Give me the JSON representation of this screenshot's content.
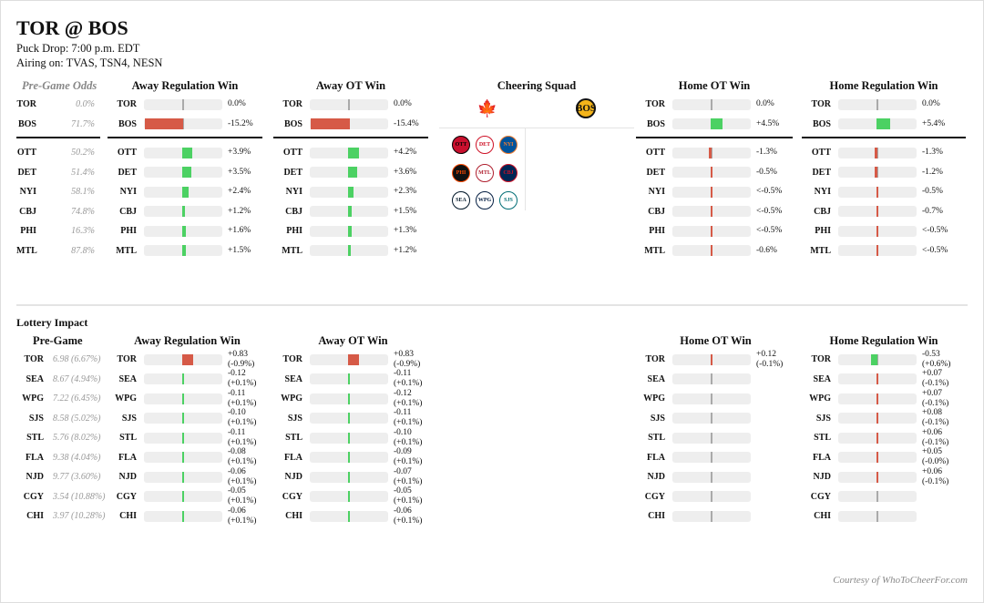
{
  "header": {
    "title": "TOR @ BOS",
    "puck_drop": "Puck Drop: 7:00 p.m. EDT",
    "airing": "Airing on: TVAS, TSN4, NESN"
  },
  "colors": {
    "positive": "#4cd163",
    "negative": "#d65a47",
    "track": "#eeeeee"
  },
  "playoff": {
    "pregame": {
      "title": "Pre-Game Odds",
      "rows": [
        {
          "team": "TOR",
          "odds": "0.0%"
        },
        {
          "team": "BOS",
          "odds": "71.7%"
        },
        {
          "team": "OTT",
          "odds": "50.2%"
        },
        {
          "team": "DET",
          "odds": "51.4%"
        },
        {
          "team": "NYI",
          "odds": "58.1%"
        },
        {
          "team": "CBJ",
          "odds": "74.8%"
        },
        {
          "team": "PHI",
          "odds": "16.3%"
        },
        {
          "team": "MTL",
          "odds": "87.8%"
        }
      ]
    },
    "outcomes": [
      {
        "title": "Away Regulation Win",
        "rows": [
          {
            "team": "TOR",
            "label": "0.0%",
            "value": 0.0
          },
          {
            "team": "BOS",
            "label": "-15.2%",
            "value": -15.2
          },
          {
            "team": "OTT",
            "label": "+3.9%",
            "value": 3.9
          },
          {
            "team": "DET",
            "label": "+3.5%",
            "value": 3.5
          },
          {
            "team": "NYI",
            "label": "+2.4%",
            "value": 2.4
          },
          {
            "team": "CBJ",
            "label": "+1.2%",
            "value": 1.2
          },
          {
            "team": "PHI",
            "label": "+1.6%",
            "value": 1.6
          },
          {
            "team": "MTL",
            "label": "+1.5%",
            "value": 1.5
          }
        ]
      },
      {
        "title": "Away OT Win",
        "rows": [
          {
            "team": "TOR",
            "label": "0.0%",
            "value": 0.0
          },
          {
            "team": "BOS",
            "label": "-15.4%",
            "value": -15.4
          },
          {
            "team": "OTT",
            "label": "+4.2%",
            "value": 4.2
          },
          {
            "team": "DET",
            "label": "+3.6%",
            "value": 3.6
          },
          {
            "team": "NYI",
            "label": "+2.3%",
            "value": 2.3
          },
          {
            "team": "CBJ",
            "label": "+1.5%",
            "value": 1.5
          },
          {
            "team": "PHI",
            "label": "+1.3%",
            "value": 1.3
          },
          {
            "team": "MTL",
            "label": "+1.2%",
            "value": 1.2
          }
        ]
      },
      {
        "title": "Home OT Win",
        "rows": [
          {
            "team": "TOR",
            "label": "0.0%",
            "value": 0.0
          },
          {
            "team": "BOS",
            "label": "+4.5%",
            "value": 4.5
          },
          {
            "team": "OTT",
            "label": "-1.3%",
            "value": -1.3
          },
          {
            "team": "DET",
            "label": "-0.5%",
            "value": -0.5
          },
          {
            "team": "NYI",
            "label": "<-0.5%",
            "value": -0.4
          },
          {
            "team": "CBJ",
            "label": "<-0.5%",
            "value": -0.4
          },
          {
            "team": "PHI",
            "label": "<-0.5%",
            "value": -0.4
          },
          {
            "team": "MTL",
            "label": "-0.6%",
            "value": -0.6
          }
        ]
      },
      {
        "title": "Home Regulation Win",
        "rows": [
          {
            "team": "TOR",
            "label": "0.0%",
            "value": 0.0
          },
          {
            "team": "BOS",
            "label": "+5.4%",
            "value": 5.4
          },
          {
            "team": "OTT",
            "label": "-1.3%",
            "value": -1.3
          },
          {
            "team": "DET",
            "label": "-1.2%",
            "value": -1.2
          },
          {
            "team": "NYI",
            "label": "-0.5%",
            "value": -0.5
          },
          {
            "team": "CBJ",
            "label": "-0.7%",
            "value": -0.7
          },
          {
            "team": "PHI",
            "label": "<-0.5%",
            "value": -0.3
          },
          {
            "team": "MTL",
            "label": "<-0.5%",
            "value": -0.3
          }
        ]
      }
    ]
  },
  "cheering": {
    "title": "Cheering Squad",
    "away_logo": "TOR",
    "home_logo": "BOS",
    "away_supporters": [
      "OTT",
      "DET",
      "NYI",
      "PHI",
      "MTL",
      "CBJ",
      "SEA",
      "WPG",
      "SJS"
    ]
  },
  "lottery": {
    "section_title": "Lottery Impact",
    "pregame": {
      "title": "Pre-Game",
      "rows": [
        {
          "team": "TOR",
          "odds": "6.98 (6.67%)"
        },
        {
          "team": "SEA",
          "odds": "8.67 (4.94%)"
        },
        {
          "team": "WPG",
          "odds": "7.22 (6.45%)"
        },
        {
          "team": "SJS",
          "odds": "8.58 (5.02%)"
        },
        {
          "team": "STL",
          "odds": "5.76 (8.02%)"
        },
        {
          "team": "FLA",
          "odds": "9.38 (4.04%)"
        },
        {
          "team": "NJD",
          "odds": "9.77 (3.60%)"
        },
        {
          "team": "CGY",
          "odds": "3.54 (10.88%)"
        },
        {
          "team": "CHI",
          "odds": "3.97 (10.28%)"
        }
      ]
    },
    "outcomes": [
      {
        "title": "Away Regulation Win",
        "rows": [
          {
            "team": "TOR",
            "l1": "+0.83",
            "l2": "(-0.9%)",
            "value": 0.83
          },
          {
            "team": "SEA",
            "l1": "-0.12",
            "l2": "(+0.1%)",
            "value": -0.12
          },
          {
            "team": "WPG",
            "l1": "-0.11",
            "l2": "(+0.1%)",
            "value": -0.11
          },
          {
            "team": "SJS",
            "l1": "-0.10",
            "l2": "(+0.1%)",
            "value": -0.1
          },
          {
            "team": "STL",
            "l1": "-0.11",
            "l2": "(+0.1%)",
            "value": -0.11
          },
          {
            "team": "FLA",
            "l1": "-0.08",
            "l2": "(+0.1%)",
            "value": -0.08
          },
          {
            "team": "NJD",
            "l1": "-0.06",
            "l2": "(+0.1%)",
            "value": -0.06
          },
          {
            "team": "CGY",
            "l1": "-0.05",
            "l2": "(+0.1%)",
            "value": -0.05
          },
          {
            "team": "CHI",
            "l1": "-0.06",
            "l2": "(+0.1%)",
            "value": -0.06
          }
        ]
      },
      {
        "title": "Away OT Win",
        "rows": [
          {
            "team": "TOR",
            "l1": "+0.83",
            "l2": "(-0.9%)",
            "value": 0.83
          },
          {
            "team": "SEA",
            "l1": "-0.11",
            "l2": "(+0.1%)",
            "value": -0.11
          },
          {
            "team": "WPG",
            "l1": "-0.12",
            "l2": "(+0.1%)",
            "value": -0.12
          },
          {
            "team": "SJS",
            "l1": "-0.11",
            "l2": "(+0.1%)",
            "value": -0.11
          },
          {
            "team": "STL",
            "l1": "-0.10",
            "l2": "(+0.1%)",
            "value": -0.1
          },
          {
            "team": "FLA",
            "l1": "-0.09",
            "l2": "(+0.1%)",
            "value": -0.09
          },
          {
            "team": "NJD",
            "l1": "-0.07",
            "l2": "(+0.1%)",
            "value": -0.07
          },
          {
            "team": "CGY",
            "l1": "-0.05",
            "l2": "(+0.1%)",
            "value": -0.05
          },
          {
            "team": "CHI",
            "l1": "-0.06",
            "l2": "(+0.1%)",
            "value": -0.06
          }
        ]
      },
      {
        "title": "Home OT Win",
        "rows": [
          {
            "team": "TOR",
            "l1": "+0.12",
            "l2": "(-0.1%)",
            "value": 0.12
          },
          {
            "team": "SEA",
            "l1": "",
            "l2": "",
            "value": 0
          },
          {
            "team": "WPG",
            "l1": "",
            "l2": "",
            "value": 0
          },
          {
            "team": "SJS",
            "l1": "",
            "l2": "",
            "value": 0
          },
          {
            "team": "STL",
            "l1": "",
            "l2": "",
            "value": 0
          },
          {
            "team": "FLA",
            "l1": "",
            "l2": "",
            "value": 0
          },
          {
            "team": "NJD",
            "l1": "",
            "l2": "",
            "value": 0
          },
          {
            "team": "CGY",
            "l1": "",
            "l2": "",
            "value": 0
          },
          {
            "team": "CHI",
            "l1": "",
            "l2": "",
            "value": 0
          }
        ]
      },
      {
        "title": "Home Regulation Win",
        "rows": [
          {
            "team": "TOR",
            "l1": "-0.53",
            "l2": "(+0.6%)",
            "value": -0.53
          },
          {
            "team": "SEA",
            "l1": "+0.07",
            "l2": "(-0.1%)",
            "value": 0.07
          },
          {
            "team": "WPG",
            "l1": "+0.07",
            "l2": "(-0.1%)",
            "value": 0.07
          },
          {
            "team": "SJS",
            "l1": "+0.08",
            "l2": "(-0.1%)",
            "value": 0.08
          },
          {
            "team": "STL",
            "l1": "+0.06",
            "l2": "(-0.1%)",
            "value": 0.06
          },
          {
            "team": "FLA",
            "l1": "+0.05",
            "l2": "(-0.0%)",
            "value": 0.05
          },
          {
            "team": "NJD",
            "l1": "+0.06",
            "l2": "(-0.1%)",
            "value": 0.06
          },
          {
            "team": "CGY",
            "l1": "",
            "l2": "",
            "value": 0
          },
          {
            "team": "CHI",
            "l1": "",
            "l2": "",
            "value": 0
          }
        ]
      }
    ]
  },
  "footer": {
    "courtesy": "Courtesy of WhoToCheerFor.com"
  }
}
